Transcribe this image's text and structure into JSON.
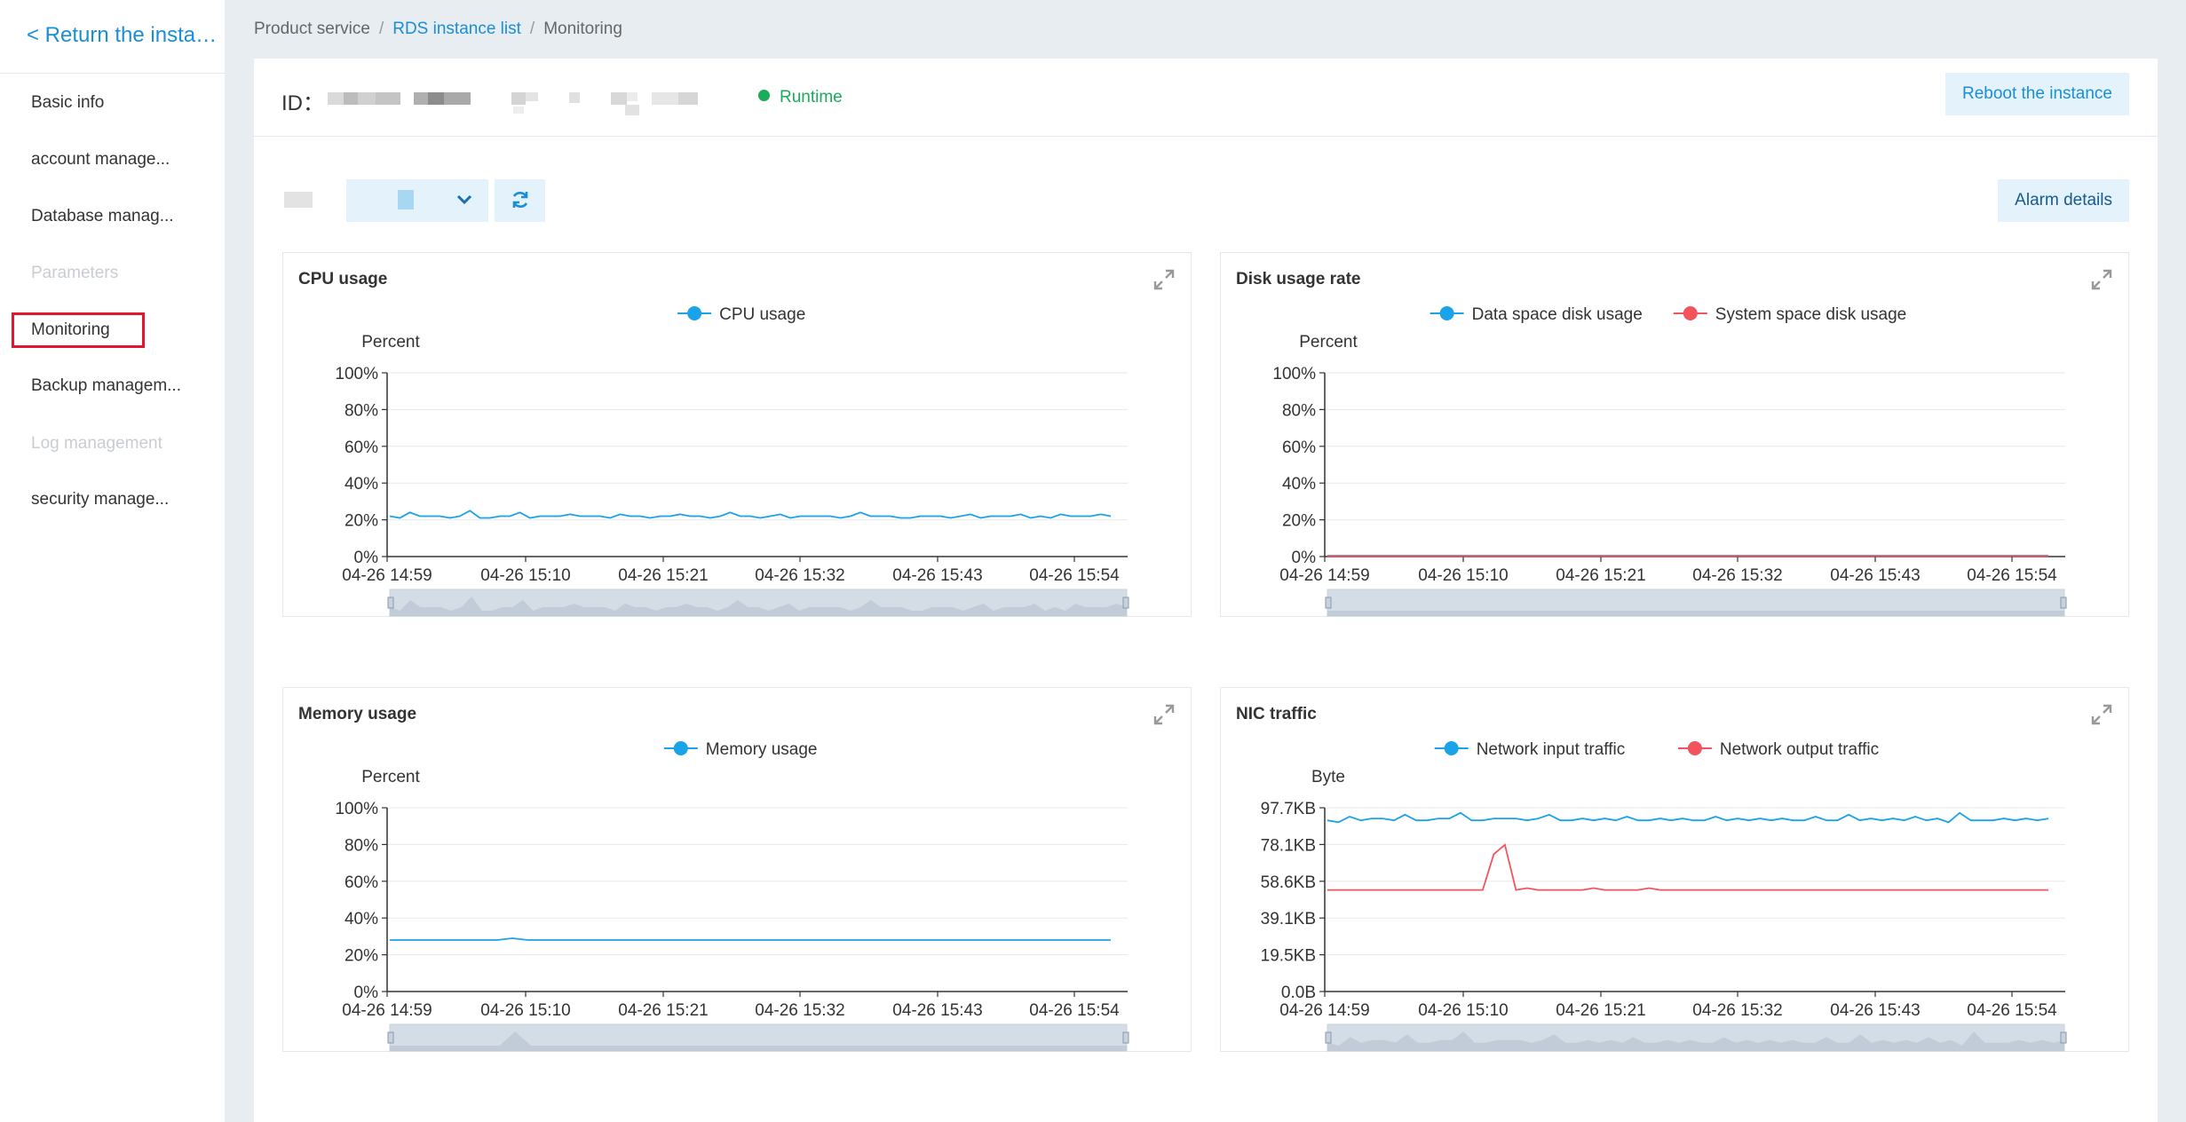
{
  "sidebar": {
    "back_label": "< Return the instan...",
    "items": [
      {
        "label": "Basic info",
        "state": "normal"
      },
      {
        "label": "account manage...",
        "state": "normal"
      },
      {
        "label": "Database manag...",
        "state": "normal"
      },
      {
        "label": "Parameters",
        "state": "disabled"
      },
      {
        "label": "Monitoring",
        "state": "active"
      },
      {
        "label": "Backup managem...",
        "state": "normal"
      },
      {
        "label": "Log management",
        "state": "disabled"
      },
      {
        "label": "security manage...",
        "state": "normal"
      }
    ]
  },
  "breadcrumb": {
    "item1": "Product service",
    "sep": "/",
    "item2": "RDS instance list",
    "item3": "Monitoring"
  },
  "header": {
    "id_label": "ID：",
    "status": "Runtime",
    "reboot_label": "Reboot the instance"
  },
  "toolbar": {
    "refresh_icon": "refresh-icon",
    "chevron_icon": "chevron-down-icon",
    "alarm_label": "Alarm details"
  },
  "colors": {
    "accent": "#1a8ed6",
    "series_blue": "#1aa3e8",
    "series_red": "#f2535d",
    "status_green": "#1aab5b"
  },
  "chart_data": [
    {
      "type": "line",
      "title": "CPU usage",
      "ylabel": "Percent",
      "x_ticks": [
        "04-26 14:59",
        "04-26 15:10",
        "04-26 15:21",
        "04-26 15:32",
        "04-26 15:43",
        "04-26 15:54"
      ],
      "y_ticks": [
        "0%",
        "20%",
        "40%",
        "60%",
        "80%",
        "100%"
      ],
      "ylim": [
        0,
        100
      ],
      "legend": "top-center",
      "grid": true,
      "series": [
        {
          "name": "CPU usage",
          "color": "#1aa3e8",
          "values": [
            22,
            21,
            24,
            22,
            22,
            22,
            21,
            22,
            25,
            21,
            21,
            22,
            22,
            24,
            21,
            22,
            22,
            22,
            23,
            22,
            22,
            22,
            21,
            23,
            22,
            22,
            21,
            22,
            22,
            23,
            22,
            22,
            21,
            22,
            24,
            22,
            22,
            21,
            22,
            23,
            21,
            22,
            22,
            22,
            22,
            21,
            22,
            24,
            22,
            22,
            22,
            21,
            21,
            22,
            22,
            22,
            21,
            22,
            23,
            21,
            22,
            22,
            22,
            23,
            21,
            22,
            21,
            23,
            22,
            22,
            22,
            23,
            22
          ]
        }
      ]
    },
    {
      "type": "line",
      "title": "Disk usage rate",
      "ylabel": "Percent",
      "x_ticks": [
        "04-26 14:59",
        "04-26 15:10",
        "04-26 15:21",
        "04-26 15:32",
        "04-26 15:43",
        "04-26 15:54"
      ],
      "y_ticks": [
        "0%",
        "20%",
        "40%",
        "60%",
        "80%",
        "100%"
      ],
      "ylim": [
        0,
        100
      ],
      "legend": "top-center",
      "grid": true,
      "series": [
        {
          "name": "Data space disk usage",
          "color": "#1aa3e8",
          "values": [
            0.5,
            0.5,
            0.5,
            0.5,
            0.5,
            0.5,
            0.5,
            0.5,
            0.5,
            0.5,
            0.5,
            0.5
          ]
        },
        {
          "name": "System space disk usage",
          "color": "#f2535d",
          "values": [
            0.3,
            0.3,
            0.3,
            0.3,
            0.3,
            0.3,
            0.3,
            0.3,
            0.3,
            0.3,
            0.3,
            0.3
          ]
        }
      ]
    },
    {
      "type": "line",
      "title": "Memory usage",
      "ylabel": "Percent",
      "x_ticks": [
        "04-26 14:59",
        "04-26 15:10",
        "04-26 15:21",
        "04-26 15:32",
        "04-26 15:43",
        "04-26 15:54"
      ],
      "y_ticks": [
        "0%",
        "20%",
        "40%",
        "60%",
        "80%",
        "100%"
      ],
      "ylim": [
        0,
        100
      ],
      "legend": "top-center",
      "grid": true,
      "series": [
        {
          "name": "Memory usage",
          "color": "#1aa3e8",
          "values": [
            28,
            28,
            28,
            28,
            28,
            28,
            28,
            28,
            29,
            28,
            28,
            28,
            28,
            28,
            28,
            28,
            28,
            28,
            28,
            28,
            28,
            28,
            28,
            28,
            28,
            28,
            28,
            28,
            28,
            28,
            28,
            28,
            28,
            28,
            28,
            28,
            28,
            28,
            28,
            28,
            28,
            28,
            28,
            28,
            28,
            28,
            28,
            28
          ]
        }
      ]
    },
    {
      "type": "line",
      "title": "NIC traffic",
      "ylabel": "Byte",
      "x_ticks": [
        "04-26 14:59",
        "04-26 15:10",
        "04-26 15:21",
        "04-26 15:32",
        "04-26 15:43",
        "04-26 15:54"
      ],
      "y_ticks": [
        "0.0B",
        "19.5KB",
        "39.1KB",
        "58.6KB",
        "78.1KB",
        "97.7KB"
      ],
      "ylim": [
        0,
        97.7
      ],
      "legend": "top-center",
      "grid": true,
      "series": [
        {
          "name": "Network input traffic",
          "color": "#1aa3e8",
          "values": [
            91,
            90,
            93,
            91,
            92,
            92,
            91,
            94,
            91,
            91,
            92,
            92,
            95,
            91,
            91,
            92,
            92,
            92,
            91,
            92,
            94,
            91,
            91,
            92,
            91,
            92,
            91,
            93,
            91,
            91,
            92,
            91,
            92,
            91,
            91,
            93,
            91,
            92,
            91,
            92,
            91,
            92,
            91,
            91,
            93,
            91,
            91,
            94,
            91,
            92,
            91,
            92,
            91,
            93,
            91,
            92,
            90,
            95,
            91,
            91,
            91,
            92,
            91,
            92,
            91,
            92
          ]
        },
        {
          "name": "Network output traffic",
          "color": "#f2535d",
          "values": [
            54,
            54,
            54,
            54,
            54,
            54,
            54,
            54,
            54,
            54,
            54,
            54,
            54,
            54,
            54,
            73,
            78,
            54,
            55,
            54,
            54,
            54,
            54,
            54,
            55,
            54,
            54,
            54,
            54,
            55,
            54,
            54,
            54,
            54,
            54,
            54,
            54,
            54,
            54,
            54,
            54,
            54,
            54,
            54,
            54,
            54,
            54,
            54,
            54,
            54,
            54,
            54,
            54,
            54,
            54,
            54,
            54,
            54,
            54,
            54,
            54,
            54,
            54,
            54,
            54,
            54
          ]
        }
      ]
    }
  ]
}
